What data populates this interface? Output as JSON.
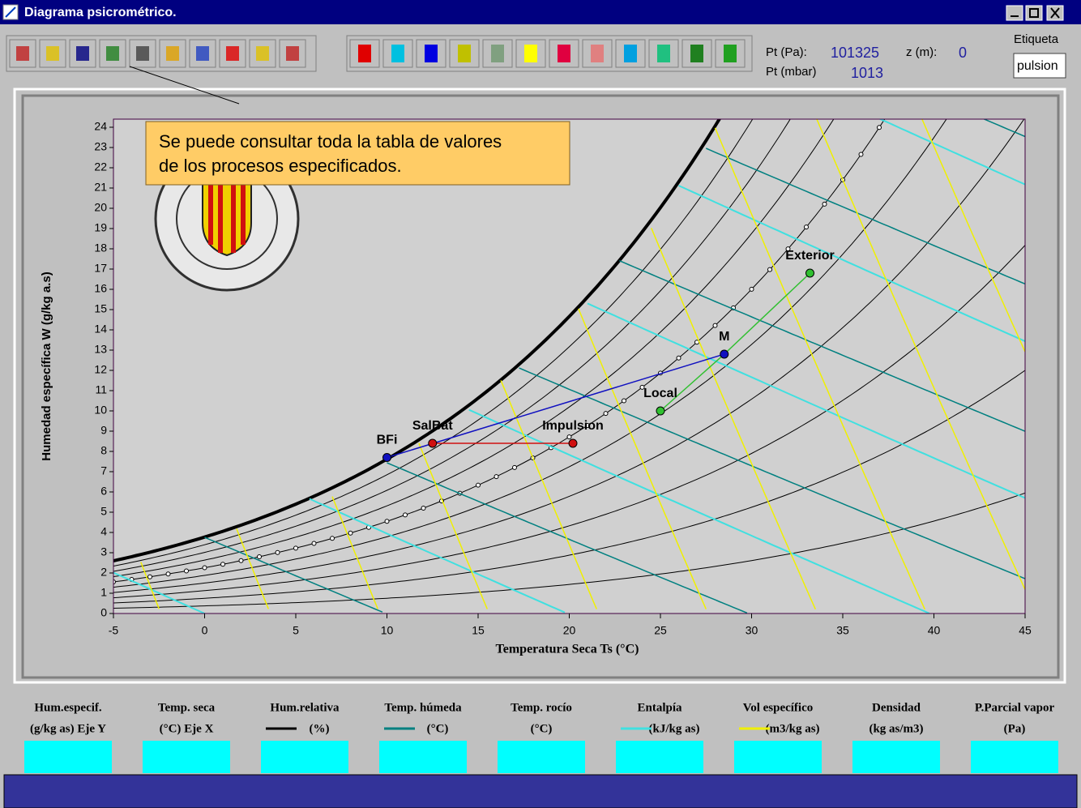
{
  "window": {
    "title": "Diagrama psicrométrico."
  },
  "toolbar": {
    "pt_pa_label": "Pt (Pa):",
    "pt_pa": 101325,
    "z_label": "z (m):",
    "z": 0,
    "pt_mbar_label": "Pt (mbar)",
    "pt_mbar": 1013,
    "etiqueta_label": "Etiqueta",
    "etiqueta": "pulsion"
  },
  "tooltip": {
    "lines": [
      "Se puede consultar toda la tabla de valores",
      "de los procesos especificados."
    ]
  },
  "chart_data": {
    "type": "scatter",
    "x_label": "Temperatura Seca   Ts (°C)",
    "y_label": "Humedad específica   W   (g/kg a.s)",
    "xlim": [
      -5,
      45
    ],
    "xticks": [
      -5,
      0,
      5,
      10,
      15,
      20,
      25,
      30,
      35,
      40,
      45
    ],
    "ylim": [
      0,
      24.4
    ],
    "yticks": [
      0,
      1,
      2,
      3,
      4,
      5,
      6,
      7,
      8,
      9,
      10,
      11,
      12,
      13,
      14,
      15,
      16,
      17,
      18,
      19,
      20,
      21,
      22,
      23,
      24
    ],
    "grid": true,
    "points": [
      {
        "name": "BFi",
        "x": 10,
        "y": 7.7,
        "color": "#1010c0"
      },
      {
        "name": "SalBat",
        "x": 12.5,
        "y": 8.4,
        "color": "#d01010"
      },
      {
        "name": "Impulsion",
        "x": 20.2,
        "y": 8.4,
        "color": "#d01010"
      },
      {
        "name": "Local",
        "x": 25,
        "y": 10,
        "color": "#30c030"
      },
      {
        "name": "M",
        "x": 28.5,
        "y": 12.8,
        "color": "#1010c0"
      },
      {
        "name": "Exterior",
        "x": 33.2,
        "y": 16.8,
        "color": "#30c030"
      }
    ]
  },
  "legend": [
    {
      "title": "Hum.especif.",
      "unit": "(g/kg as) Eje Y"
    },
    {
      "title": "Temp. seca",
      "unit": "(°C)  Eje X"
    },
    {
      "title": "Hum.relativa",
      "unit": "(%)",
      "line_color": "#000000"
    },
    {
      "title": "Temp. húmeda",
      "unit": "(°C)",
      "line_color": "#008080"
    },
    {
      "title": "Temp. rocío",
      "unit": "(°C)"
    },
    {
      "title": "Entalpía",
      "unit": "(kJ/kg as)",
      "line_color": "#40e0e0"
    },
    {
      "title": "Vol específico",
      "unit": "(m3/kg as)",
      "line_color": "#f0f000"
    },
    {
      "title": "Densidad",
      "unit": "(kg as/m3)"
    },
    {
      "title": "P.Parcial vapor",
      "unit": "(Pa)"
    }
  ]
}
